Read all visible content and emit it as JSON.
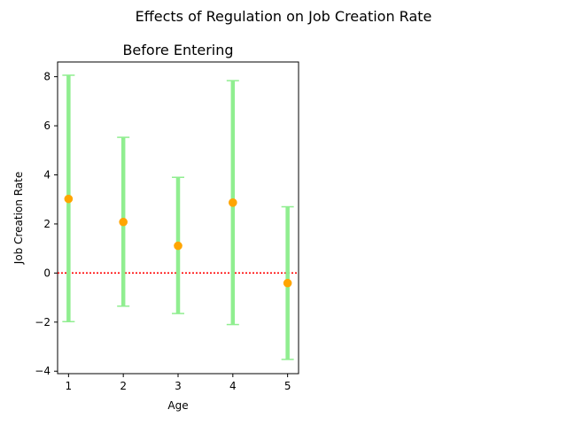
{
  "figure": {
    "suptitle": "Effects of Regulation on Job Creation Rate"
  },
  "chart_data": {
    "type": "errorbar",
    "title": "Before Entering",
    "xlabel": "Age",
    "ylabel": "Job Creation Rate",
    "x": [
      1,
      2,
      3,
      4,
      5
    ],
    "y": [
      3.02,
      2.08,
      1.11,
      2.87,
      -0.41
    ],
    "yerr_low": [
      -1.98,
      -1.35,
      -1.65,
      -2.1,
      -3.52
    ],
    "yerr_high": [
      8.06,
      5.53,
      3.9,
      7.84,
      2.7
    ],
    "xlim": [
      0.8,
      5.2
    ],
    "ylim": [
      -4.1,
      8.6
    ],
    "xticks": [
      1,
      2,
      3,
      4,
      5
    ],
    "yticks": [
      -4,
      -2,
      0,
      2,
      4,
      6,
      8
    ],
    "reference_line": {
      "y": 0,
      "style": "dotted",
      "color": "#ff0000"
    },
    "point_color": "#ffa500",
    "errorbar_color": "#90ee90"
  }
}
